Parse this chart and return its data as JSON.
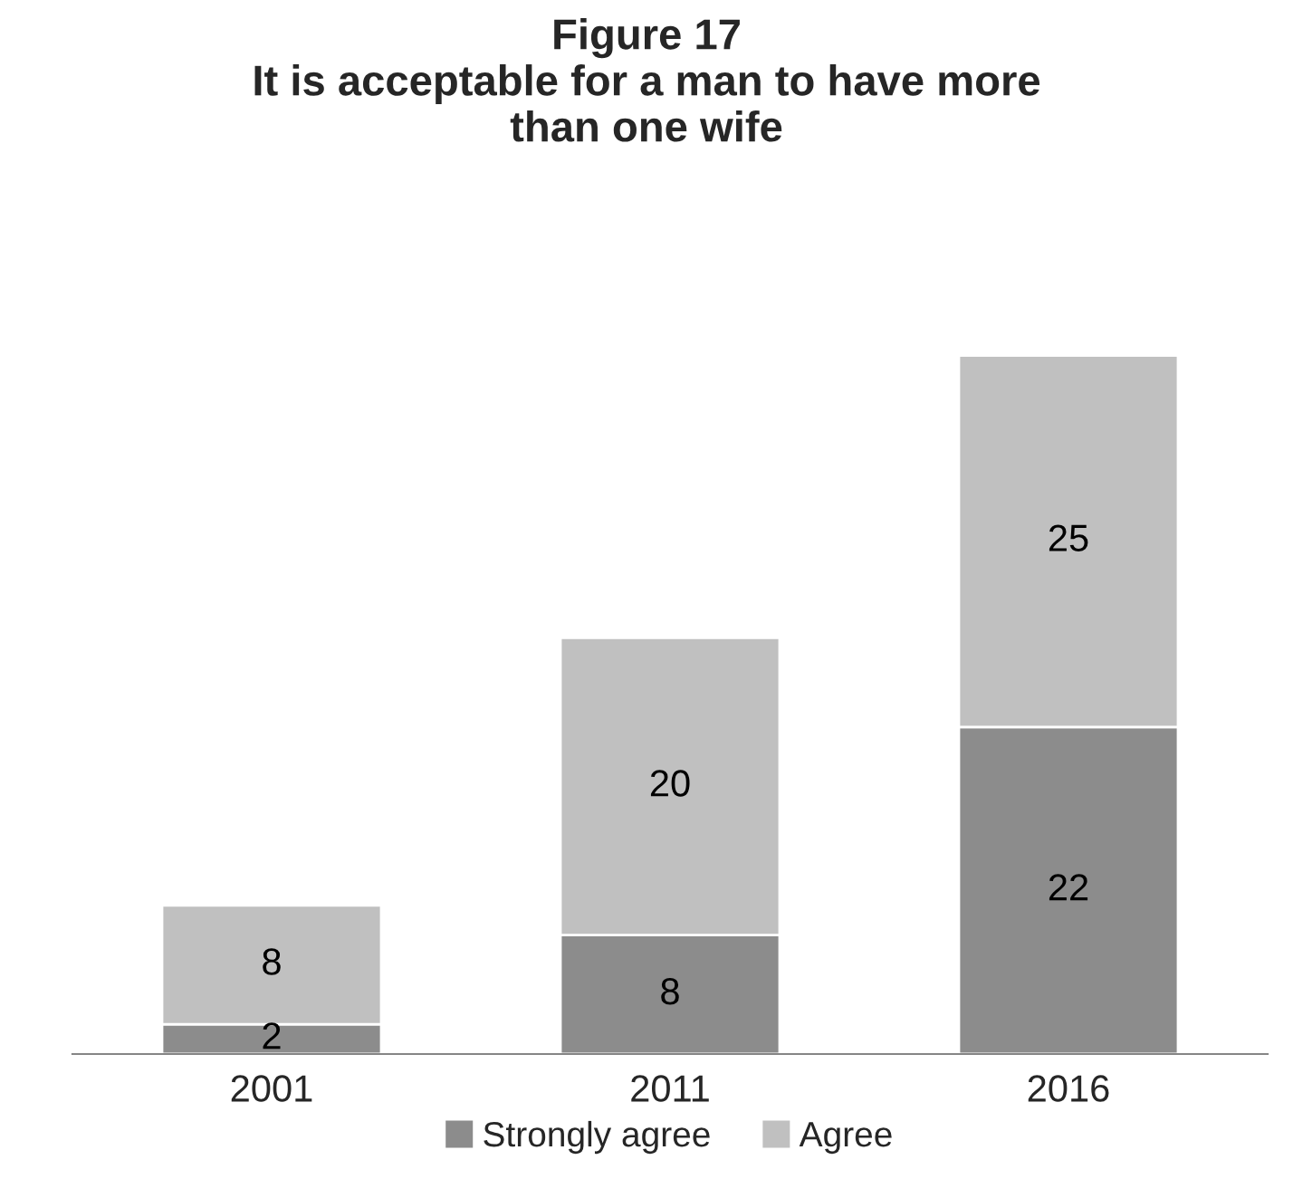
{
  "chart_data": {
    "type": "bar",
    "title": "Figure 17\nIt is acceptable for a man to have more\nthan one wife",
    "categories": [
      "2001",
      "2011",
      "2016"
    ],
    "stacked": true,
    "data_labels": true,
    "legend": "bottom",
    "grid": false,
    "series": [
      {
        "name": "Strongly agree",
        "color": "#8c8c8c",
        "values": [
          2,
          8,
          22
        ]
      },
      {
        "name": "Agree",
        "color": "#c0c0c0",
        "values": [
          8,
          20,
          25
        ]
      }
    ]
  }
}
